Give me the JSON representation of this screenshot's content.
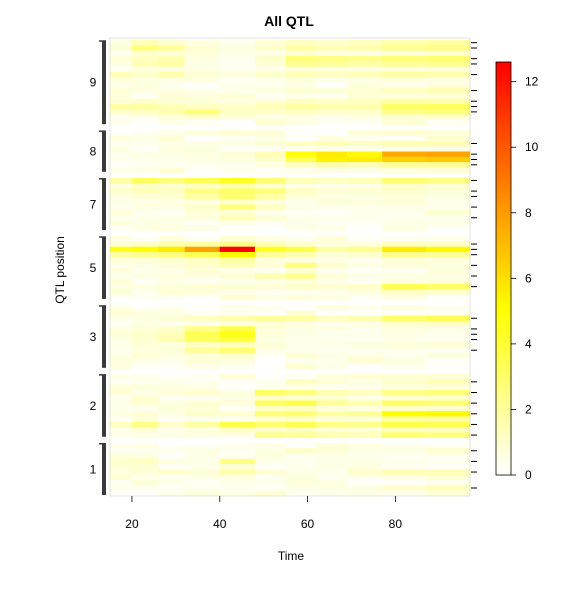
{
  "chart_data": {
    "type": "heatmap",
    "title": "All QTL",
    "xlabel": "Time",
    "ylabel": "QTL position",
    "xlim": [
      15,
      97
    ],
    "x_ticks": [
      20,
      40,
      60,
      80
    ],
    "x_bins": [
      {
        "from": 15,
        "to": 20
      },
      {
        "from": 20,
        "to": 26
      },
      {
        "from": 26,
        "to": 32
      },
      {
        "from": 32,
        "to": 40
      },
      {
        "from": 40,
        "to": 48
      },
      {
        "from": 48,
        "to": 55
      },
      {
        "from": 55,
        "to": 62
      },
      {
        "from": 62,
        "to": 69
      },
      {
        "from": 69,
        "to": 77
      },
      {
        "from": 77,
        "to": 87
      },
      {
        "from": 87,
        "to": 97
      }
    ],
    "chromosomes": [
      {
        "label": "1",
        "rows": 10,
        "hot": [
          {
            "row": 1,
            "values": [
              0.3,
              0.4,
              0.3,
              0.5,
              0.3,
              0.6,
              1.0,
              0.8,
              0.5,
              0.6,
              0.9
            ]
          },
          {
            "row": 3,
            "values": [
              1.0,
              1.2,
              0.6,
              0.5,
              2.5,
              0.4,
              0.3,
              0.5,
              0.5,
              0.4,
              0.3
            ]
          },
          {
            "row": 5,
            "values": [
              0.6,
              0.8,
              1.0,
              0.8,
              1.6,
              0.8,
              0.5,
              0.4,
              1.0,
              1.5,
              1.4
            ]
          },
          {
            "row": 8,
            "values": [
              0.4,
              0.3,
              0.2,
              0.4,
              0.3,
              0.2,
              0.5,
              0.6,
              0.6,
              1.0,
              1.3
            ]
          }
        ]
      },
      {
        "label": "2",
        "rows": 12,
        "hot": [
          {
            "row": 1,
            "values": [
              0.2,
              0.4,
              0.4,
              0.3,
              0.2,
              0.3,
              1.2,
              0.8,
              0.6,
              1.0,
              1.4
            ]
          },
          {
            "row": 3,
            "values": [
              0.8,
              0.5,
              0.7,
              0.9,
              0.6,
              3.0,
              2.5,
              1.5,
              1.2,
              2.4,
              2.6
            ]
          },
          {
            "row": 5,
            "values": [
              0.5,
              0.9,
              0.6,
              0.8,
              0.7,
              3.2,
              3.6,
              2.0,
              1.6,
              3.0,
              2.8
            ]
          },
          {
            "row": 7,
            "values": [
              0.6,
              0.8,
              0.6,
              1.0,
              0.9,
              2.6,
              2.8,
              1.8,
              2.0,
              5.0,
              5.2
            ]
          },
          {
            "row": 9,
            "values": [
              1.2,
              2.4,
              1.0,
              1.8,
              3.6,
              2.8,
              3.4,
              2.4,
              2.2,
              3.6,
              3.4
            ]
          },
          {
            "row": 11,
            "values": [
              0.4,
              0.5,
              0.5,
              0.6,
              0.5,
              2.2,
              2.0,
              1.6,
              1.4,
              2.8,
              2.6
            ]
          }
        ]
      },
      {
        "label": "3",
        "rows": 12,
        "hot": [
          {
            "row": 2,
            "values": [
              0.5,
              0.6,
              0.8,
              1.2,
              1.6,
              2.0,
              1.8,
              1.2,
              1.5,
              3.0,
              3.4
            ]
          },
          {
            "row": 4,
            "values": [
              0.6,
              0.8,
              1.0,
              2.4,
              3.6,
              0.8,
              0.6,
              0.5,
              0.4,
              0.6,
              0.5
            ]
          },
          {
            "row": 5,
            "values": [
              0.8,
              1.0,
              1.4,
              3.4,
              4.6,
              0.7,
              0.5,
              0.4,
              0.4,
              0.5,
              0.4
            ]
          },
          {
            "row": 6,
            "values": [
              0.5,
              0.9,
              1.6,
              3.2,
              3.8,
              0.6,
              0.4,
              0.4,
              0.3,
              0.4,
              0.3
            ]
          },
          {
            "row": 8,
            "values": [
              0.4,
              0.6,
              0.8,
              2.0,
              2.8,
              0.5,
              0.4,
              0.3,
              0.3,
              0.4,
              0.3
            ]
          }
        ]
      },
      {
        "label": "5",
        "rows": 12,
        "hot": [
          {
            "row": 1,
            "values": [
              0.8,
              1.0,
              1.6,
              1.8,
              2.4,
              1.4,
              0.9,
              0.6,
              0.7,
              1.2,
              1.0
            ]
          },
          {
            "row": 2,
            "values": [
              4.6,
              5.0,
              5.6,
              7.8,
              12.6,
              4.4,
              3.6,
              1.8,
              2.2,
              5.6,
              5.2
            ]
          },
          {
            "row": 3,
            "values": [
              1.8,
              2.2,
              2.6,
              3.4,
              5.2,
              2.0,
              1.6,
              0.8,
              1.0,
              2.2,
              2.0
            ]
          },
          {
            "row": 5,
            "values": [
              0.4,
              0.6,
              0.8,
              1.0,
              1.4,
              0.8,
              2.6,
              1.0,
              0.6,
              0.8,
              0.7
            ]
          },
          {
            "row": 7,
            "values": [
              0.4,
              0.5,
              0.6,
              0.6,
              0.9,
              1.6,
              2.2,
              0.8,
              0.5,
              0.6,
              0.5
            ]
          },
          {
            "row": 9,
            "values": [
              0.6,
              0.6,
              0.7,
              0.8,
              0.9,
              0.8,
              1.0,
              0.9,
              1.0,
              3.4,
              3.0
            ]
          }
        ]
      },
      {
        "label": "7",
        "rows": 10,
        "hot": [
          {
            "row": 0,
            "values": [
              1.8,
              3.2,
              2.6,
              3.4,
              4.4,
              2.8,
              1.4,
              1.2,
              1.4,
              2.8,
              2.4
            ]
          },
          {
            "row": 2,
            "values": [
              1.0,
              1.4,
              1.2,
              2.4,
              3.0,
              2.6,
              1.2,
              0.8,
              0.9,
              1.0,
              0.8
            ]
          },
          {
            "row": 3,
            "values": [
              0.6,
              0.8,
              0.9,
              1.8,
              2.8,
              1.8,
              0.8,
              0.6,
              0.6,
              0.7,
              0.6
            ]
          },
          {
            "row": 5,
            "values": [
              0.4,
              0.6,
              0.6,
              1.0,
              2.6,
              1.2,
              0.5,
              0.4,
              0.4,
              0.5,
              0.4
            ]
          },
          {
            "row": 7,
            "values": [
              0.3,
              0.4,
              0.5,
              0.7,
              1.4,
              0.8,
              0.4,
              0.4,
              0.3,
              0.4,
              0.3
            ]
          }
        ]
      },
      {
        "label": "8",
        "rows": 8,
        "hot": [
          {
            "row": 2,
            "values": [
              0.3,
              0.4,
              0.4,
              0.5,
              0.6,
              0.8,
              1.2,
              1.4,
              1.2,
              1.6,
              1.5
            ]
          },
          {
            "row": 4,
            "values": [
              0.4,
              0.5,
              0.5,
              0.6,
              0.8,
              1.4,
              5.0,
              5.6,
              5.2,
              7.6,
              7.8
            ]
          },
          {
            "row": 5,
            "values": [
              0.3,
              0.4,
              0.4,
              0.5,
              0.6,
              1.0,
              3.4,
              5.4,
              5.6,
              6.4,
              6.6
            ]
          },
          {
            "row": 6,
            "values": [
              0.2,
              0.3,
              0.3,
              0.4,
              0.4,
              0.6,
              1.2,
              1.6,
              1.4,
              2.0,
              2.0
            ]
          }
        ]
      },
      {
        "label": "9",
        "rows": 16,
        "hot": [
          {
            "row": 0,
            "values": [
              0.6,
              1.4,
              1.0,
              0.6,
              0.4,
              0.8,
              1.2,
              1.0,
              1.2,
              1.6,
              1.8
            ]
          },
          {
            "row": 1,
            "values": [
              0.8,
              2.6,
              2.0,
              0.9,
              0.6,
              1.0,
              1.8,
              1.4,
              1.6,
              2.2,
              2.4
            ]
          },
          {
            "row": 3,
            "values": [
              0.8,
              1.2,
              1.6,
              0.6,
              0.4,
              1.0,
              2.6,
              2.4,
              2.2,
              2.6,
              2.8
            ]
          },
          {
            "row": 4,
            "values": [
              0.6,
              1.4,
              1.8,
              0.5,
              0.3,
              0.8,
              2.2,
              2.0,
              1.8,
              2.0,
              2.2
            ]
          },
          {
            "row": 6,
            "values": [
              1.4,
              1.0,
              1.6,
              0.8,
              0.6,
              1.0,
              1.4,
              1.2,
              1.4,
              1.8,
              1.6
            ]
          },
          {
            "row": 9,
            "values": [
              0.8,
              0.6,
              0.5,
              0.4,
              0.4,
              0.6,
              0.9,
              0.8,
              0.9,
              1.2,
              1.4
            ]
          },
          {
            "row": 11,
            "values": [
              0.7,
              1.0,
              0.8,
              0.8,
              0.6,
              0.8,
              1.2,
              1.0,
              1.2,
              1.8,
              1.6
            ]
          },
          {
            "row": 12,
            "values": [
              1.8,
              1.8,
              1.4,
              1.2,
              1.0,
              1.4,
              1.8,
              1.6,
              1.6,
              3.0,
              3.2
            ]
          },
          {
            "row": 13,
            "values": [
              1.0,
              1.2,
              1.6,
              2.6,
              1.2,
              1.0,
              1.2,
              1.0,
              1.0,
              2.4,
              2.6
            ]
          }
        ]
      }
    ],
    "colorbar": {
      "range": [
        0,
        12.6
      ],
      "ticks": [
        0,
        2,
        4,
        6,
        8,
        10,
        12
      ],
      "colors": [
        "#ffffff",
        "#ffff00",
        "#ff0000"
      ]
    }
  }
}
